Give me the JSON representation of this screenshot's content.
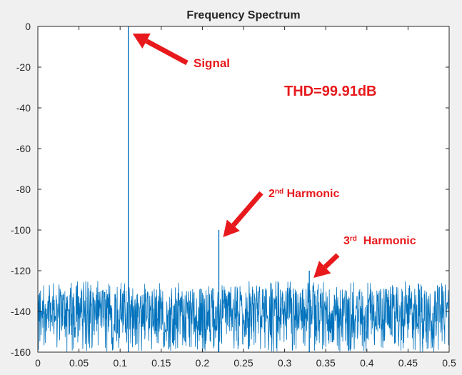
{
  "chart_data": {
    "type": "line",
    "title": "Frequency Spectrum",
    "xlabel": "",
    "ylabel": "",
    "xlim": [
      0,
      0.5
    ],
    "ylim": [
      -160,
      0
    ],
    "xticks": [
      "0",
      "0.05",
      "0.1",
      "0.15",
      "0.2",
      "0.25",
      "0.3",
      "0.35",
      "0.4",
      "0.45",
      "0.5"
    ],
    "yticks": [
      "0",
      "-20",
      "-40",
      "-60",
      "-80",
      "-100",
      "-120",
      "-140",
      "-160"
    ],
    "grid": false,
    "series": [
      {
        "color": "#0072bd",
        "noise_floor": {
          "mean": -137,
          "typical_min": -150,
          "typical_max": -128
        },
        "peaks": [
          {
            "x": 0.11,
            "y": 0
          },
          {
            "x": 0.22,
            "y": -100
          },
          {
            "x": 0.33,
            "y": -120
          }
        ]
      }
    ],
    "annotations": [
      {
        "id": "signal",
        "text": "Signal",
        "superscript": "",
        "suffix": "",
        "points_to": {
          "x": 0.11,
          "y": 0
        }
      },
      {
        "id": "thd",
        "text": "THD=99.91dB",
        "superscript": "",
        "suffix": "",
        "points_to": null
      },
      {
        "id": "h2",
        "text": "2",
        "superscript": "nd",
        "suffix": " Harmonic",
        "points_to": {
          "x": 0.22,
          "y": -100
        }
      },
      {
        "id": "h3",
        "text": "3",
        "superscript": "rd",
        "suffix": "  Harmonic",
        "points_to": {
          "x": 0.33,
          "y": -120
        }
      }
    ],
    "annotation_color": "#e8191c"
  }
}
